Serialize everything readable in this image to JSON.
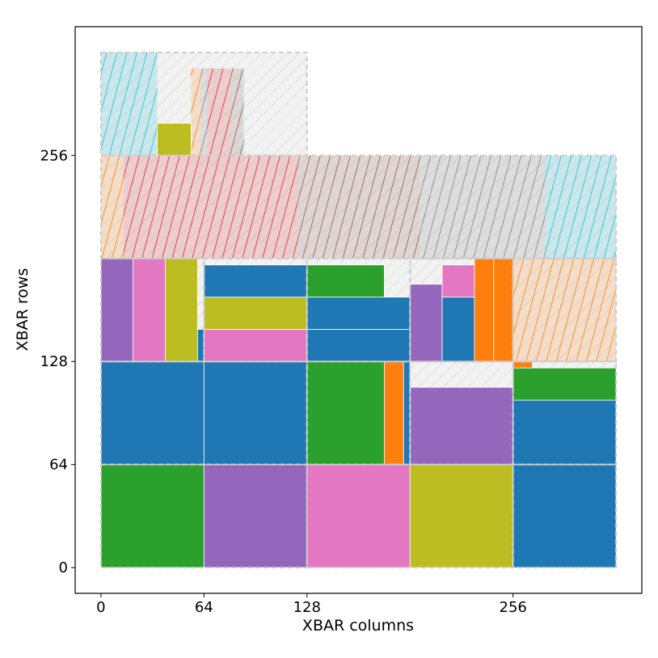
{
  "chart_data": {
    "type": "heatmap",
    "title": "",
    "xlabel": "XBAR columns",
    "ylabel": "XBAR rows",
    "xlim": [
      -16,
      336
    ],
    "ylim": [
      -16,
      336
    ],
    "xticks": [
      0,
      64,
      128,
      256
    ],
    "yticks": [
      0,
      64,
      128,
      256
    ],
    "colors": {
      "blue": "#1f77b4",
      "orange": "#ff7f0e",
      "green": "#2ca02c",
      "red": "#d62728",
      "purple": "#9467bd",
      "brown": "#8c564b",
      "pink": "#e377c2",
      "gray": "#7f7f7f",
      "olive": "#bcbd22",
      "cyan": "#17becf",
      "tile_border": "#cccccc",
      "empty_fill": "#f2f2f2"
    },
    "tiles": [
      {
        "x": [
          0,
          128
        ],
        "y": [
          0,
          64
        ]
      },
      {
        "x": [
          128,
          256
        ],
        "y": [
          0,
          64
        ]
      },
      {
        "x": [
          256,
          320
        ],
        "y": [
          0,
          64
        ]
      },
      {
        "x": [
          0,
          128
        ],
        "y": [
          64,
          128
        ]
      },
      {
        "x": [
          128,
          192
        ],
        "y": [
          64,
          128
        ]
      },
      {
        "x": [
          192,
          256
        ],
        "y": [
          64,
          128
        ]
      },
      {
        "x": [
          256,
          320
        ],
        "y": [
          64,
          128
        ]
      },
      {
        "x": [
          0,
          64
        ],
        "y": [
          128,
          192
        ]
      },
      {
        "x": [
          64,
          128
        ],
        "y": [
          128,
          192
        ]
      },
      {
        "x": [
          128,
          192
        ],
        "y": [
          128,
          192
        ]
      },
      {
        "x": [
          192,
          256
        ],
        "y": [
          128,
          192
        ]
      },
      {
        "x": [
          256,
          320
        ],
        "y": [
          128,
          192
        ]
      },
      {
        "x": [
          0,
          320
        ],
        "y": [
          192,
          256
        ]
      },
      {
        "x": [
          0,
          128
        ],
        "y": [
          256,
          320
        ]
      }
    ],
    "blocks": [
      {
        "x": [
          0,
          64
        ],
        "y": [
          0,
          64
        ],
        "color": "green"
      },
      {
        "x": [
          64,
          128
        ],
        "y": [
          0,
          64
        ],
        "color": "purple"
      },
      {
        "x": [
          128,
          192
        ],
        "y": [
          0,
          64
        ],
        "color": "pink"
      },
      {
        "x": [
          192,
          256
        ],
        "y": [
          0,
          64
        ],
        "color": "olive"
      },
      {
        "x": [
          256,
          320
        ],
        "y": [
          0,
          64
        ],
        "color": "blue"
      },
      {
        "x": [
          0,
          64
        ],
        "y": [
          64,
          128
        ],
        "color": "blue"
      },
      {
        "x": [
          64,
          128
        ],
        "y": [
          64,
          128
        ],
        "color": "blue"
      },
      {
        "x": [
          128,
          176
        ],
        "y": [
          64,
          128
        ],
        "color": "green"
      },
      {
        "x": [
          176,
          188
        ],
        "y": [
          64,
          128
        ],
        "color": "orange"
      },
      {
        "x": [
          188,
          192
        ],
        "y": [
          64,
          128
        ],
        "color": "blue"
      },
      {
        "x": [
          192,
          256
        ],
        "y": [
          64,
          112
        ],
        "color": "purple"
      },
      {
        "x": [
          256,
          320
        ],
        "y": [
          64,
          104
        ],
        "color": "blue"
      },
      {
        "x": [
          256,
          320
        ],
        "y": [
          104,
          124
        ],
        "color": "green"
      },
      {
        "x": [
          256,
          268
        ],
        "y": [
          124,
          128
        ],
        "color": "orange"
      },
      {
        "x": [
          0,
          20
        ],
        "y": [
          128,
          192
        ],
        "color": "purple"
      },
      {
        "x": [
          20,
          40
        ],
        "y": [
          128,
          192
        ],
        "color": "pink"
      },
      {
        "x": [
          40,
          60
        ],
        "y": [
          128,
          192
        ],
        "color": "olive"
      },
      {
        "x": [
          60,
          64
        ],
        "y": [
          128,
          148
        ],
        "color": "blue"
      },
      {
        "x": [
          64,
          128
        ],
        "y": [
          128,
          148
        ],
        "color": "pink"
      },
      {
        "x": [
          64,
          128
        ],
        "y": [
          148,
          168
        ],
        "color": "olive"
      },
      {
        "x": [
          64,
          128
        ],
        "y": [
          168,
          188
        ],
        "color": "blue"
      },
      {
        "x": [
          128,
          192
        ],
        "y": [
          128,
          148
        ],
        "color": "blue"
      },
      {
        "x": [
          128,
          192
        ],
        "y": [
          148,
          168
        ],
        "color": "blue"
      },
      {
        "x": [
          128,
          176
        ],
        "y": [
          168,
          188
        ],
        "color": "green"
      },
      {
        "x": [
          192,
          212
        ],
        "y": [
          128,
          176
        ],
        "color": "purple"
      },
      {
        "x": [
          212,
          232
        ],
        "y": [
          128,
          168
        ],
        "color": "blue"
      },
      {
        "x": [
          212,
          232
        ],
        "y": [
          168,
          188
        ],
        "color": "pink"
      },
      {
        "x": [
          232,
          244
        ],
        "y": [
          128,
          192
        ],
        "color": "orange"
      },
      {
        "x": [
          244,
          256
        ],
        "y": [
          128,
          192
        ],
        "color": "orange"
      }
    ],
    "hatched_blocks": [
      {
        "x": [
          256,
          320
        ],
        "y": [
          128,
          192
        ],
        "color": "orange"
      },
      {
        "x": [
          0,
          14
        ],
        "y": [
          192,
          256
        ],
        "color": "orange"
      },
      {
        "x": [
          14,
          122
        ],
        "y": [
          192,
          256
        ],
        "color": "red"
      },
      {
        "x": [
          122,
          198
        ],
        "y": [
          192,
          256
        ],
        "color": "brown"
      },
      {
        "x": [
          198,
          276
        ],
        "y": [
          192,
          256
        ],
        "color": "gray"
      },
      {
        "x": [
          276,
          320
        ],
        "y": [
          192,
          256
        ],
        "color": "cyan"
      },
      {
        "x": [
          0,
          35
        ],
        "y": [
          256,
          320
        ],
        "color": "cyan"
      },
      {
        "x": [
          56,
          62
        ],
        "y": [
          256,
          310
        ],
        "color": "orange"
      },
      {
        "x": [
          62,
          66
        ],
        "y": [
          256,
          310
        ],
        "color": "gray"
      },
      {
        "x": [
          66,
          80
        ],
        "y": [
          256,
          310
        ],
        "color": "red"
      },
      {
        "x": [
          80,
          88
        ],
        "y": [
          256,
          310
        ],
        "color": "brown"
      },
      {
        "x": [
          88,
          89
        ],
        "y": [
          256,
          310
        ],
        "color": "cyan"
      }
    ],
    "overlay_blocks": [
      {
        "x": [
          35,
          56
        ],
        "y": [
          256,
          276
        ],
        "color": "olive"
      }
    ]
  }
}
